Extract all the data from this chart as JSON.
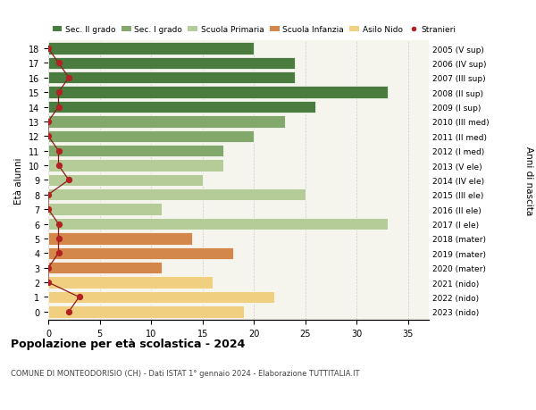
{
  "ages": [
    18,
    17,
    16,
    15,
    14,
    13,
    12,
    11,
    10,
    9,
    8,
    7,
    6,
    5,
    4,
    3,
    2,
    1,
    0
  ],
  "years": [
    "2005 (V sup)",
    "2006 (IV sup)",
    "2007 (III sup)",
    "2008 (II sup)",
    "2009 (I sup)",
    "2010 (III med)",
    "2011 (II med)",
    "2012 (I med)",
    "2013 (V ele)",
    "2014 (IV ele)",
    "2015 (III ele)",
    "2016 (II ele)",
    "2017 (I ele)",
    "2018 (mater)",
    "2019 (mater)",
    "2020 (mater)",
    "2021 (nido)",
    "2022 (nido)",
    "2023 (nido)"
  ],
  "bar_values": [
    20,
    24,
    24,
    33,
    26,
    23,
    20,
    17,
    17,
    15,
    25,
    11,
    33,
    14,
    18,
    11,
    16,
    22,
    19
  ],
  "bar_colors": [
    "#4a7c3f",
    "#4a7c3f",
    "#4a7c3f",
    "#4a7c3f",
    "#4a7c3f",
    "#82a96b",
    "#82a96b",
    "#82a96b",
    "#b5cc99",
    "#b5cc99",
    "#b5cc99",
    "#b5cc99",
    "#b5cc99",
    "#d4874a",
    "#d4874a",
    "#d4874a",
    "#f0d080",
    "#f0d080",
    "#f0d080"
  ],
  "stranieri_values": [
    0,
    1,
    2,
    1,
    1,
    0,
    0,
    1,
    1,
    2,
    0,
    0,
    1,
    1,
    1,
    0,
    0,
    3,
    2
  ],
  "legend_labels": [
    "Sec. II grado",
    "Sec. I grado",
    "Scuola Primaria",
    "Scuola Infanzia",
    "Asilo Nido",
    "Stranieri"
  ],
  "legend_colors": [
    "#4a7c3f",
    "#82a96b",
    "#b5cc99",
    "#d4874a",
    "#f0d080",
    "#b22222"
  ],
  "ylabel": "Età alunni",
  "ylabel_right": "Anni di nascita",
  "title": "Popolazione per età scolastica - 2024",
  "subtitle": "COMUNE DI MONTEODORISIO (CH) - Dati ISTAT 1° gennaio 2024 - Elaborazione TUTTITALIA.IT",
  "xlim": [
    0,
    37
  ],
  "background_color": "#ffffff",
  "bar_edge_color": "#ffffff",
  "grid_color": "#cccccc",
  "stranieri_line_color": "#8b1a1a",
  "stranieri_dot_color": "#b22222",
  "axes_bg": "#f5f5ee"
}
